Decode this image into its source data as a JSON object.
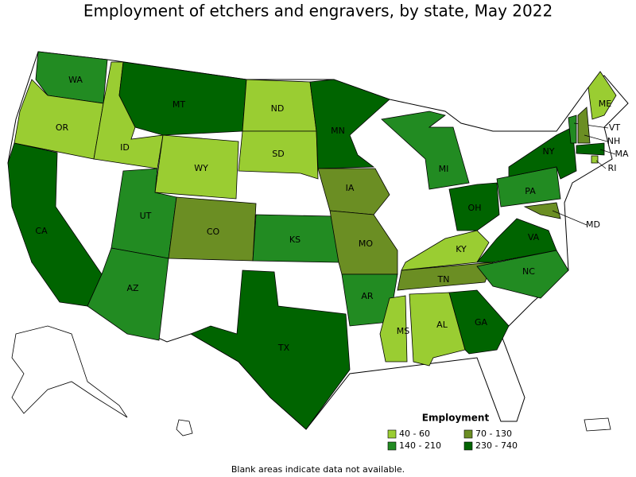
{
  "title": "Employment of etchers and engravers, by state, May 2022",
  "legend": {
    "title": "Employment",
    "items": [
      {
        "label": "40 - 60",
        "color": "#9acd32"
      },
      {
        "label": "70 - 130",
        "color": "#6b8e23"
      },
      {
        "label": "140 - 210",
        "color": "#228b22"
      },
      {
        "label": "230 - 740",
        "color": "#006400"
      }
    ]
  },
  "states": [
    {
      "label": "WA",
      "employment": "140 - 210"
    },
    {
      "label": "OR",
      "employment": "40 - 60"
    },
    {
      "label": "CA",
      "employment": "230 - 740"
    },
    {
      "label": "ID",
      "employment": "40 - 60"
    },
    {
      "label": "MT",
      "employment": "230 - 740"
    },
    {
      "label": "WY",
      "employment": "40 - 60"
    },
    {
      "label": "UT",
      "employment": "140 - 210"
    },
    {
      "label": "AZ",
      "employment": "140 - 210"
    },
    {
      "label": "CO",
      "employment": "70 - 130"
    },
    {
      "label": "ND",
      "employment": "40 - 60"
    },
    {
      "label": "SD",
      "employment": "40 - 60"
    },
    {
      "label": "KS",
      "employment": "140 - 210"
    },
    {
      "label": "TX",
      "employment": "230 - 740"
    },
    {
      "label": "MN",
      "employment": "230 - 740"
    },
    {
      "label": "IA",
      "employment": "70 - 130"
    },
    {
      "label": "MO",
      "employment": "70 - 130"
    },
    {
      "label": "AR",
      "employment": "140 - 210"
    },
    {
      "label": "MS",
      "employment": "40 - 60"
    },
    {
      "label": "AL",
      "employment": "40 - 60"
    },
    {
      "label": "GA",
      "employment": "230 - 740"
    },
    {
      "label": "TN",
      "employment": "70 - 130"
    },
    {
      "label": "KY",
      "employment": "40 - 60"
    },
    {
      "label": "OH",
      "employment": "230 - 740"
    },
    {
      "label": "MI",
      "employment": "140 - 210"
    },
    {
      "label": "VA",
      "employment": "230 - 740"
    },
    {
      "label": "NC",
      "employment": "140 - 210"
    },
    {
      "label": "PA",
      "employment": "140 - 210"
    },
    {
      "label": "NY",
      "employment": "230 - 740"
    },
    {
      "label": "ME",
      "employment": "40 - 60"
    },
    {
      "label": "VT",
      "employment": "140 - 210"
    },
    {
      "label": "NH",
      "employment": "70 - 130"
    },
    {
      "label": "MA",
      "employment": "230 - 740"
    },
    {
      "label": "RI",
      "employment": "40 - 60"
    },
    {
      "label": "MD",
      "employment": "70 - 130"
    }
  ],
  "footnote": "Blank areas indicate data not available."
}
